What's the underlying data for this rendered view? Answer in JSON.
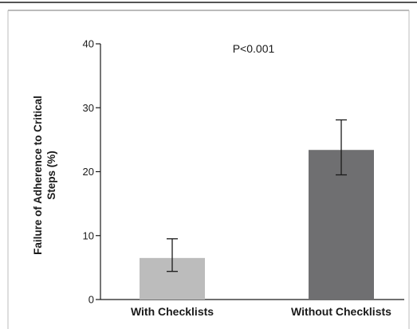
{
  "chart_data": {
    "type": "bar",
    "title": "",
    "xlabel": "",
    "ylabel_lines": [
      "Failure of Adherence to Critical",
      "Steps (%)"
    ],
    "categories": [
      "With Checklists",
      "Without Checklists"
    ],
    "values": [
      6.5,
      23.4
    ],
    "error_low": [
      4.4,
      19.5
    ],
    "error_high": [
      9.5,
      28.1
    ],
    "bar_colors": [
      "#bcbcbc",
      "#6f6f71"
    ],
    "ylim": [
      0,
      40
    ],
    "yticks": [
      "0",
      "10",
      "20",
      "30",
      "40"
    ],
    "grid": false,
    "annotation": "P<0.001"
  },
  "colors": {
    "frame_top": "#555555",
    "axis": "#1a1a1a",
    "border": "#bdbdbd"
  }
}
